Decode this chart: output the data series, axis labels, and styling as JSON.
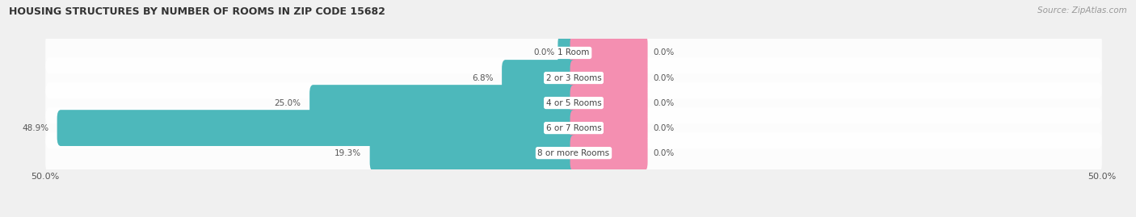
{
  "title": "HOUSING STRUCTURES BY NUMBER OF ROOMS IN ZIP CODE 15682",
  "source": "Source: ZipAtlas.com",
  "categories": [
    "1 Room",
    "2 or 3 Rooms",
    "4 or 5 Rooms",
    "6 or 7 Rooms",
    "8 or more Rooms"
  ],
  "owner_values": [
    0.0,
    6.8,
    25.0,
    48.9,
    19.3
  ],
  "renter_values": [
    0.0,
    0.0,
    0.0,
    0.0,
    0.0
  ],
  "owner_color": "#4db8bb",
  "renter_color": "#f48fb1",
  "row_bg_color": "#e8e8e8",
  "row_inner_bg": "#f5f5f5",
  "axis_min": -50.0,
  "axis_max": 50.0,
  "label_color": "#555555",
  "title_color": "#333333",
  "source_color": "#999999",
  "category_label_bg": "#ffffff",
  "category_label_color": "#444444",
  "fig_bg": "#f0f0f0",
  "zero_stub": 1.5,
  "renter_stub": 7.0
}
